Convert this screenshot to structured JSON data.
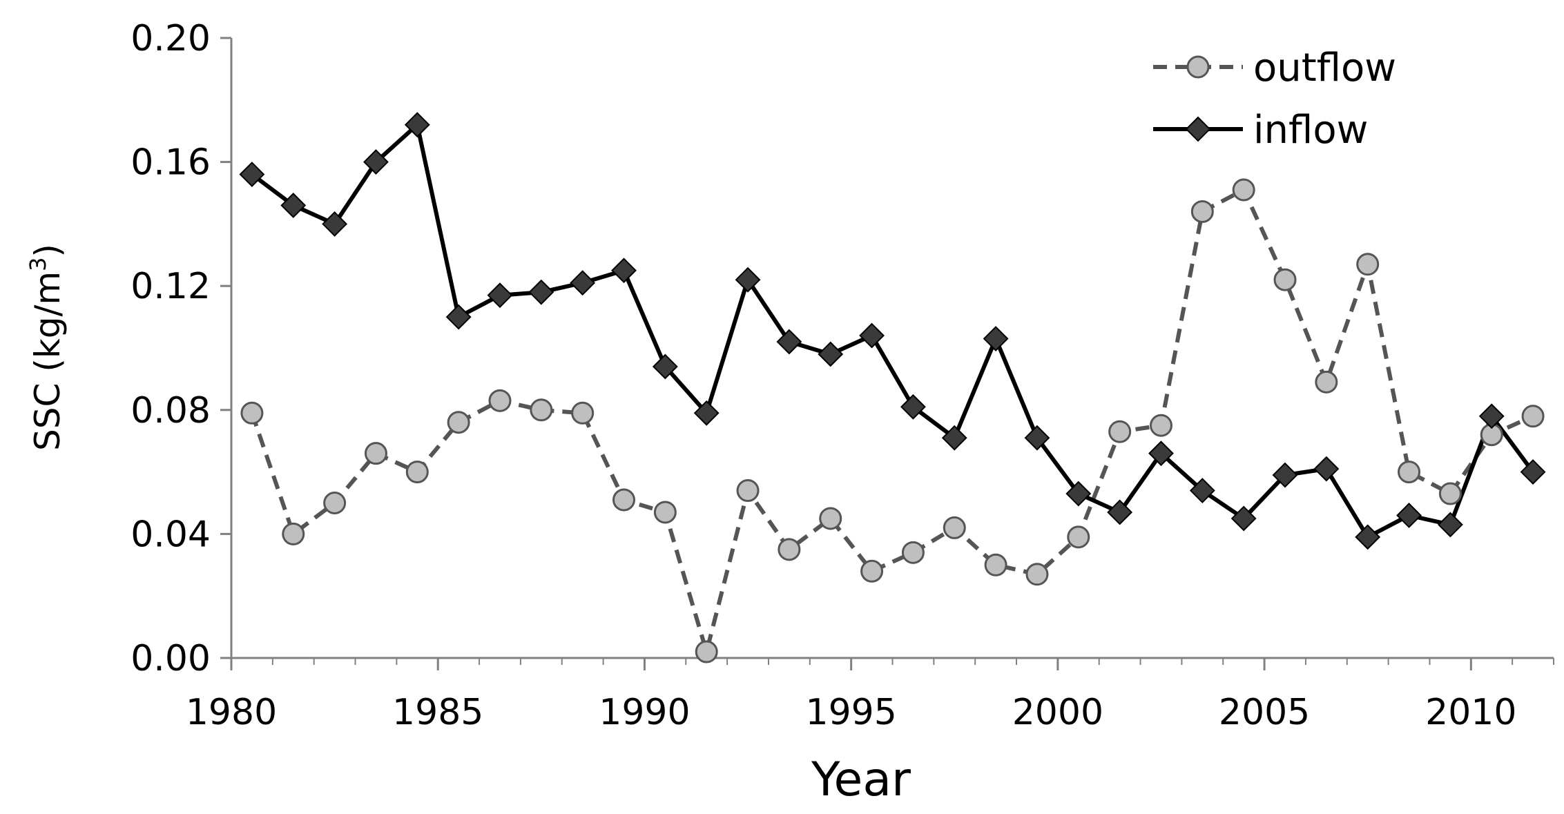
{
  "chart_data": {
    "type": "line",
    "xlabel": "Year",
    "ylabel": "SSC (kg/m",
    "ylabel_superscript": "3",
    "ylabel_close": ")",
    "xlim": [
      1980,
      2012
    ],
    "ylim": [
      0,
      0.2
    ],
    "x_ticks": [
      1980,
      1985,
      1990,
      1995,
      2000,
      2005,
      2010
    ],
    "x_tick_labels": [
      "1980",
      "1985",
      "1990",
      "1995",
      "2000",
      "2005",
      "2010"
    ],
    "y_ticks": [
      0,
      0.04,
      0.08,
      0.12,
      0.16,
      0.2
    ],
    "y_tick_labels": [
      "0.00",
      "0.04",
      "0.08",
      "0.12",
      "0.16",
      "0.20"
    ],
    "grid": false,
    "legend_position": "top-right",
    "series": [
      {
        "name": "outflow",
        "color": "#555555",
        "marker": "circle",
        "marker_fill": "#bfbfbf",
        "line_style": "dashed",
        "x": [
          1980.5,
          1981.5,
          1982.5,
          1983.5,
          1984.5,
          1985.5,
          1986.5,
          1987.5,
          1988.5,
          1989.5,
          1990.5,
          1991.5,
          1992.5,
          1993.5,
          1994.5,
          1995.5,
          1996.5,
          1997.5,
          1998.5,
          1999.5,
          2000.5,
          2001.5,
          2002.5,
          2003.5,
          2004.5,
          2005.5,
          2006.5,
          2007.5,
          2008.5,
          2009.5,
          2010.5,
          2011.5
        ],
        "values": [
          0.079,
          0.04,
          0.05,
          0.066,
          0.06,
          0.076,
          0.083,
          0.08,
          0.079,
          0.051,
          0.047,
          0.002,
          0.054,
          0.035,
          0.045,
          0.028,
          0.034,
          0.042,
          0.03,
          0.027,
          0.039,
          0.073,
          0.075,
          0.144,
          0.151,
          0.122,
          0.089,
          0.127,
          0.06,
          0.053,
          0.072,
          0.078
        ]
      },
      {
        "name": "inflow",
        "color": "#000000",
        "marker": "diamond",
        "marker_fill": "#3a3a3a",
        "line_style": "solid",
        "x": [
          1980.5,
          1981.5,
          1982.5,
          1983.5,
          1984.5,
          1985.5,
          1986.5,
          1987.5,
          1988.5,
          1989.5,
          1990.5,
          1991.5,
          1992.5,
          1993.5,
          1994.5,
          1995.5,
          1996.5,
          1997.5,
          1998.5,
          1999.5,
          2000.5,
          2001.5,
          2002.5,
          2003.5,
          2004.5,
          2005.5,
          2006.5,
          2007.5,
          2008.5,
          2009.5,
          2010.5,
          2011.5
        ],
        "values": [
          0.156,
          0.146,
          0.14,
          0.16,
          0.172,
          0.11,
          0.117,
          0.118,
          0.121,
          0.125,
          0.094,
          0.079,
          0.122,
          0.102,
          0.098,
          0.104,
          0.081,
          0.071,
          0.103,
          0.071,
          0.053,
          0.047,
          0.066,
          0.054,
          0.045,
          0.059,
          0.061,
          0.039,
          0.046,
          0.043,
          0.078,
          0.06
        ]
      }
    ]
  }
}
